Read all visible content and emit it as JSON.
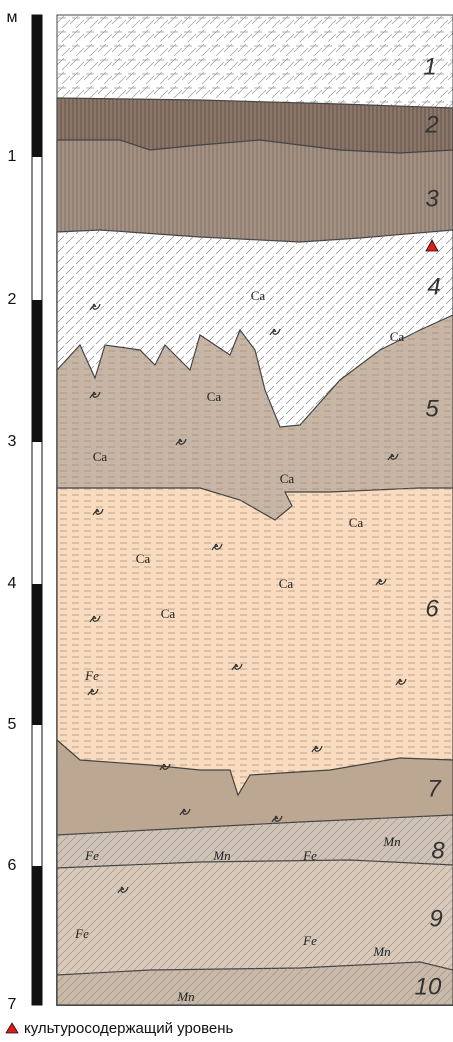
{
  "scale": {
    "unit": "м",
    "ticks": [
      "1",
      "2",
      "3",
      "4",
      "5",
      "6",
      "7"
    ]
  },
  "layers": [
    "1",
    "2",
    "3",
    "4",
    "5",
    "6",
    "7",
    "8",
    "9",
    "10"
  ],
  "inclusions": [
    "Ca",
    "Ca",
    "Ca",
    "Ca",
    "Ca",
    "Ca",
    "Ca",
    "Ca",
    "Ca",
    "Fe",
    "Fe",
    "Fe",
    "Fe",
    "Fe",
    "Mn",
    "Mn",
    "Mn",
    "Mn"
  ],
  "legend": {
    "label": "культуросодержащий уровень"
  }
}
